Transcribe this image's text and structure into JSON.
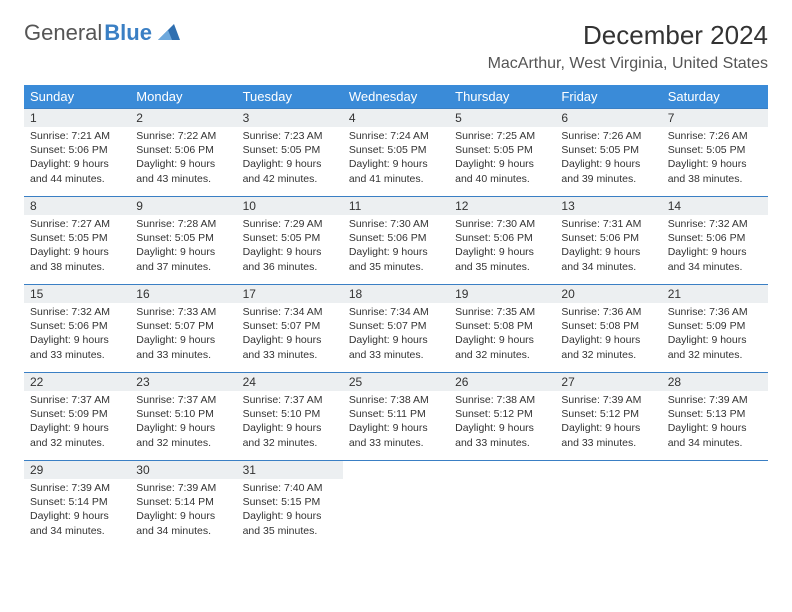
{
  "logo": {
    "text1": "General",
    "text2": "Blue"
  },
  "title": "December 2024",
  "location": "MacArthur, West Virginia, United States",
  "colors": {
    "header_bg": "#3a8bd8",
    "border": "#3a7fc4",
    "daynum_bg": "#eceff1",
    "text": "#333333",
    "logo_blue": "#3a7fc4"
  },
  "day_labels": [
    "Sunday",
    "Monday",
    "Tuesday",
    "Wednesday",
    "Thursday",
    "Friday",
    "Saturday"
  ],
  "days": [
    {
      "n": "1",
      "rise": "7:21 AM",
      "set": "5:06 PM",
      "dl": "9 hours and 44 minutes."
    },
    {
      "n": "2",
      "rise": "7:22 AM",
      "set": "5:06 PM",
      "dl": "9 hours and 43 minutes."
    },
    {
      "n": "3",
      "rise": "7:23 AM",
      "set": "5:05 PM",
      "dl": "9 hours and 42 minutes."
    },
    {
      "n": "4",
      "rise": "7:24 AM",
      "set": "5:05 PM",
      "dl": "9 hours and 41 minutes."
    },
    {
      "n": "5",
      "rise": "7:25 AM",
      "set": "5:05 PM",
      "dl": "9 hours and 40 minutes."
    },
    {
      "n": "6",
      "rise": "7:26 AM",
      "set": "5:05 PM",
      "dl": "9 hours and 39 minutes."
    },
    {
      "n": "7",
      "rise": "7:26 AM",
      "set": "5:05 PM",
      "dl": "9 hours and 38 minutes."
    },
    {
      "n": "8",
      "rise": "7:27 AM",
      "set": "5:05 PM",
      "dl": "9 hours and 38 minutes."
    },
    {
      "n": "9",
      "rise": "7:28 AM",
      "set": "5:05 PM",
      "dl": "9 hours and 37 minutes."
    },
    {
      "n": "10",
      "rise": "7:29 AM",
      "set": "5:05 PM",
      "dl": "9 hours and 36 minutes."
    },
    {
      "n": "11",
      "rise": "7:30 AM",
      "set": "5:06 PM",
      "dl": "9 hours and 35 minutes."
    },
    {
      "n": "12",
      "rise": "7:30 AM",
      "set": "5:06 PM",
      "dl": "9 hours and 35 minutes."
    },
    {
      "n": "13",
      "rise": "7:31 AM",
      "set": "5:06 PM",
      "dl": "9 hours and 34 minutes."
    },
    {
      "n": "14",
      "rise": "7:32 AM",
      "set": "5:06 PM",
      "dl": "9 hours and 34 minutes."
    },
    {
      "n": "15",
      "rise": "7:32 AM",
      "set": "5:06 PM",
      "dl": "9 hours and 33 minutes."
    },
    {
      "n": "16",
      "rise": "7:33 AM",
      "set": "5:07 PM",
      "dl": "9 hours and 33 minutes."
    },
    {
      "n": "17",
      "rise": "7:34 AM",
      "set": "5:07 PM",
      "dl": "9 hours and 33 minutes."
    },
    {
      "n": "18",
      "rise": "7:34 AM",
      "set": "5:07 PM",
      "dl": "9 hours and 33 minutes."
    },
    {
      "n": "19",
      "rise": "7:35 AM",
      "set": "5:08 PM",
      "dl": "9 hours and 32 minutes."
    },
    {
      "n": "20",
      "rise": "7:36 AM",
      "set": "5:08 PM",
      "dl": "9 hours and 32 minutes."
    },
    {
      "n": "21",
      "rise": "7:36 AM",
      "set": "5:09 PM",
      "dl": "9 hours and 32 minutes."
    },
    {
      "n": "22",
      "rise": "7:37 AM",
      "set": "5:09 PM",
      "dl": "9 hours and 32 minutes."
    },
    {
      "n": "23",
      "rise": "7:37 AM",
      "set": "5:10 PM",
      "dl": "9 hours and 32 minutes."
    },
    {
      "n": "24",
      "rise": "7:37 AM",
      "set": "5:10 PM",
      "dl": "9 hours and 32 minutes."
    },
    {
      "n": "25",
      "rise": "7:38 AM",
      "set": "5:11 PM",
      "dl": "9 hours and 33 minutes."
    },
    {
      "n": "26",
      "rise": "7:38 AM",
      "set": "5:12 PM",
      "dl": "9 hours and 33 minutes."
    },
    {
      "n": "27",
      "rise": "7:39 AM",
      "set": "5:12 PM",
      "dl": "9 hours and 33 minutes."
    },
    {
      "n": "28",
      "rise": "7:39 AM",
      "set": "5:13 PM",
      "dl": "9 hours and 34 minutes."
    },
    {
      "n": "29",
      "rise": "7:39 AM",
      "set": "5:14 PM",
      "dl": "9 hours and 34 minutes."
    },
    {
      "n": "30",
      "rise": "7:39 AM",
      "set": "5:14 PM",
      "dl": "9 hours and 34 minutes."
    },
    {
      "n": "31",
      "rise": "7:40 AM",
      "set": "5:15 PM",
      "dl": "9 hours and 35 minutes."
    }
  ],
  "labels": {
    "sunrise": "Sunrise:",
    "sunset": "Sunset:",
    "daylight": "Daylight:"
  }
}
